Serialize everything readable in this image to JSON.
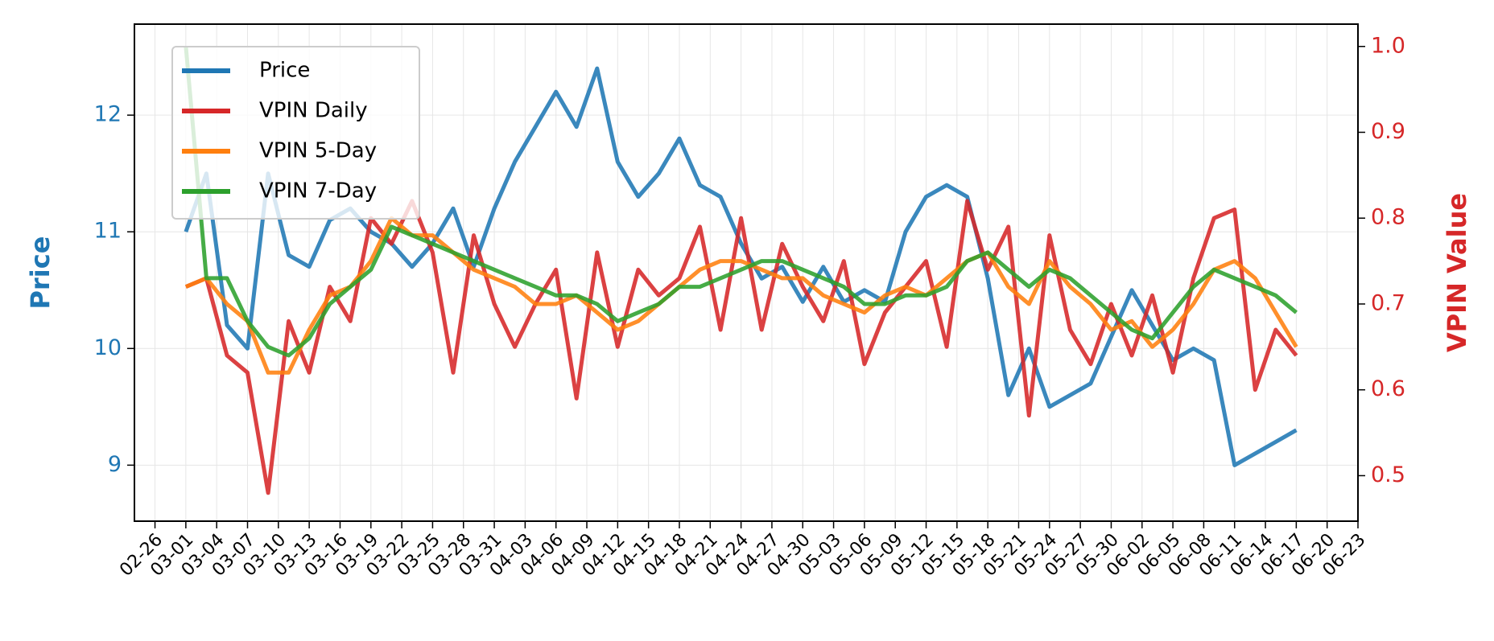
{
  "chart_data": {
    "type": "line",
    "x": [
      "03-01",
      "03-03",
      "03-05",
      "03-07",
      "03-09",
      "03-11",
      "03-13",
      "03-15",
      "03-17",
      "03-19",
      "03-21",
      "03-23",
      "03-25",
      "03-27",
      "03-29",
      "03-31",
      "04-02",
      "04-04",
      "04-06",
      "04-08",
      "04-10",
      "04-12",
      "04-14",
      "04-16",
      "04-18",
      "04-20",
      "04-22",
      "04-24",
      "04-26",
      "04-28",
      "04-30",
      "05-02",
      "05-04",
      "05-06",
      "05-08",
      "05-10",
      "05-12",
      "05-14",
      "05-16",
      "05-18",
      "05-20",
      "05-22",
      "05-24",
      "05-26",
      "05-28",
      "05-30",
      "06-01",
      "06-03",
      "06-05",
      "06-07",
      "06-09",
      "06-11",
      "06-13",
      "06-15",
      "06-17"
    ],
    "series": [
      {
        "name": "Price",
        "color": "#1f77b4",
        "axis": "y",
        "values": [
          11.0,
          11.5,
          10.2,
          10.0,
          11.5,
          10.8,
          10.7,
          11.1,
          11.2,
          11.0,
          10.9,
          10.7,
          10.9,
          11.2,
          10.7,
          11.2,
          11.6,
          11.9,
          12.2,
          11.9,
          12.4,
          11.6,
          11.3,
          11.5,
          11.8,
          11.4,
          11.3,
          10.9,
          10.6,
          10.7,
          10.4,
          10.7,
          10.4,
          10.5,
          10.4,
          11.0,
          11.3,
          11.4,
          11.3,
          10.6,
          9.6,
          10.0,
          9.5,
          9.6,
          9.7,
          10.1,
          10.5,
          10.2,
          9.9,
          10.0,
          9.9,
          9.0,
          9.1,
          9.2,
          9.3
        ]
      },
      {
        "name": "VPIN Daily",
        "color": "#d62728",
        "axis": "y2",
        "values": [
          0.72,
          0.73,
          0.64,
          0.62,
          0.48,
          0.68,
          0.62,
          0.72,
          0.68,
          0.8,
          0.77,
          0.82,
          0.76,
          0.62,
          0.78,
          0.7,
          0.65,
          0.7,
          0.74,
          0.59,
          0.76,
          0.65,
          0.74,
          0.71,
          0.73,
          0.79,
          0.67,
          0.8,
          0.67,
          0.77,
          0.72,
          0.68,
          0.75,
          0.63,
          0.69,
          0.72,
          0.75,
          0.65,
          0.82,
          0.74,
          0.79,
          0.57,
          0.78,
          0.67,
          0.63,
          0.7,
          0.64,
          0.71,
          0.62,
          0.73,
          0.8,
          0.81,
          0.6,
          0.67,
          0.64
        ]
      },
      {
        "name": "VPIN 5-Day",
        "color": "#ff7f0e",
        "axis": "y2",
        "values": [
          0.72,
          0.73,
          0.7,
          0.68,
          0.62,
          0.62,
          0.67,
          0.71,
          0.72,
          0.75,
          0.8,
          0.78,
          0.78,
          0.76,
          0.74,
          0.73,
          0.72,
          0.7,
          0.7,
          0.71,
          0.69,
          0.67,
          0.68,
          0.7,
          0.72,
          0.74,
          0.75,
          0.75,
          0.74,
          0.73,
          0.73,
          0.71,
          0.7,
          0.69,
          0.71,
          0.72,
          0.71,
          0.73,
          0.75,
          0.76,
          0.72,
          0.7,
          0.75,
          0.72,
          0.7,
          0.67,
          0.68,
          0.65,
          0.67,
          0.7,
          0.74,
          0.75,
          0.73,
          0.69,
          0.65
        ]
      },
      {
        "name": "VPIN 7-Day",
        "color": "#2ca02c",
        "axis": "y2",
        "values": [
          1.0,
          0.73,
          0.73,
          0.68,
          0.65,
          0.64,
          0.66,
          0.7,
          0.72,
          0.74,
          0.79,
          0.78,
          0.77,
          0.76,
          0.75,
          0.74,
          0.73,
          0.72,
          0.71,
          0.71,
          0.7,
          0.68,
          0.69,
          0.7,
          0.72,
          0.72,
          0.73,
          0.74,
          0.75,
          0.75,
          0.74,
          0.73,
          0.72,
          0.7,
          0.7,
          0.71,
          0.71,
          0.72,
          0.75,
          0.76,
          0.74,
          0.72,
          0.74,
          0.73,
          0.71,
          0.69,
          0.67,
          0.66,
          0.69,
          0.72,
          0.74,
          0.73,
          0.72,
          0.71,
          0.69
        ]
      }
    ],
    "ylabel": "Price",
    "y2label": "VPIN Value",
    "xlim": [
      "02-24",
      "06-23"
    ],
    "xticks": [
      "02-26",
      "03-01",
      "03-04",
      "03-07",
      "03-10",
      "03-13",
      "03-16",
      "03-19",
      "03-22",
      "03-25",
      "03-28",
      "03-31",
      "04-03",
      "04-06",
      "04-09",
      "04-12",
      "04-15",
      "04-18",
      "04-21",
      "04-24",
      "04-27",
      "04-30",
      "05-03",
      "05-06",
      "05-09",
      "05-12",
      "05-15",
      "05-18",
      "05-21",
      "05-24",
      "05-27",
      "05-30",
      "06-02",
      "06-05",
      "06-08",
      "06-11",
      "06-14",
      "06-17",
      "06-20",
      "06-23"
    ],
    "ylim": [
      8.52,
      12.78
    ],
    "yticks": [
      9,
      10,
      11,
      12
    ],
    "y2lim": [
      0.447,
      1.026
    ],
    "y2ticks": [
      0.5,
      0.6,
      0.7,
      0.8,
      0.9,
      {
        "value": 1.0,
        "label": "1.0"
      }
    ],
    "ycolor": "#1f77b4",
    "y2color": "#d62728",
    "grid": true,
    "legend": "upper left"
  }
}
